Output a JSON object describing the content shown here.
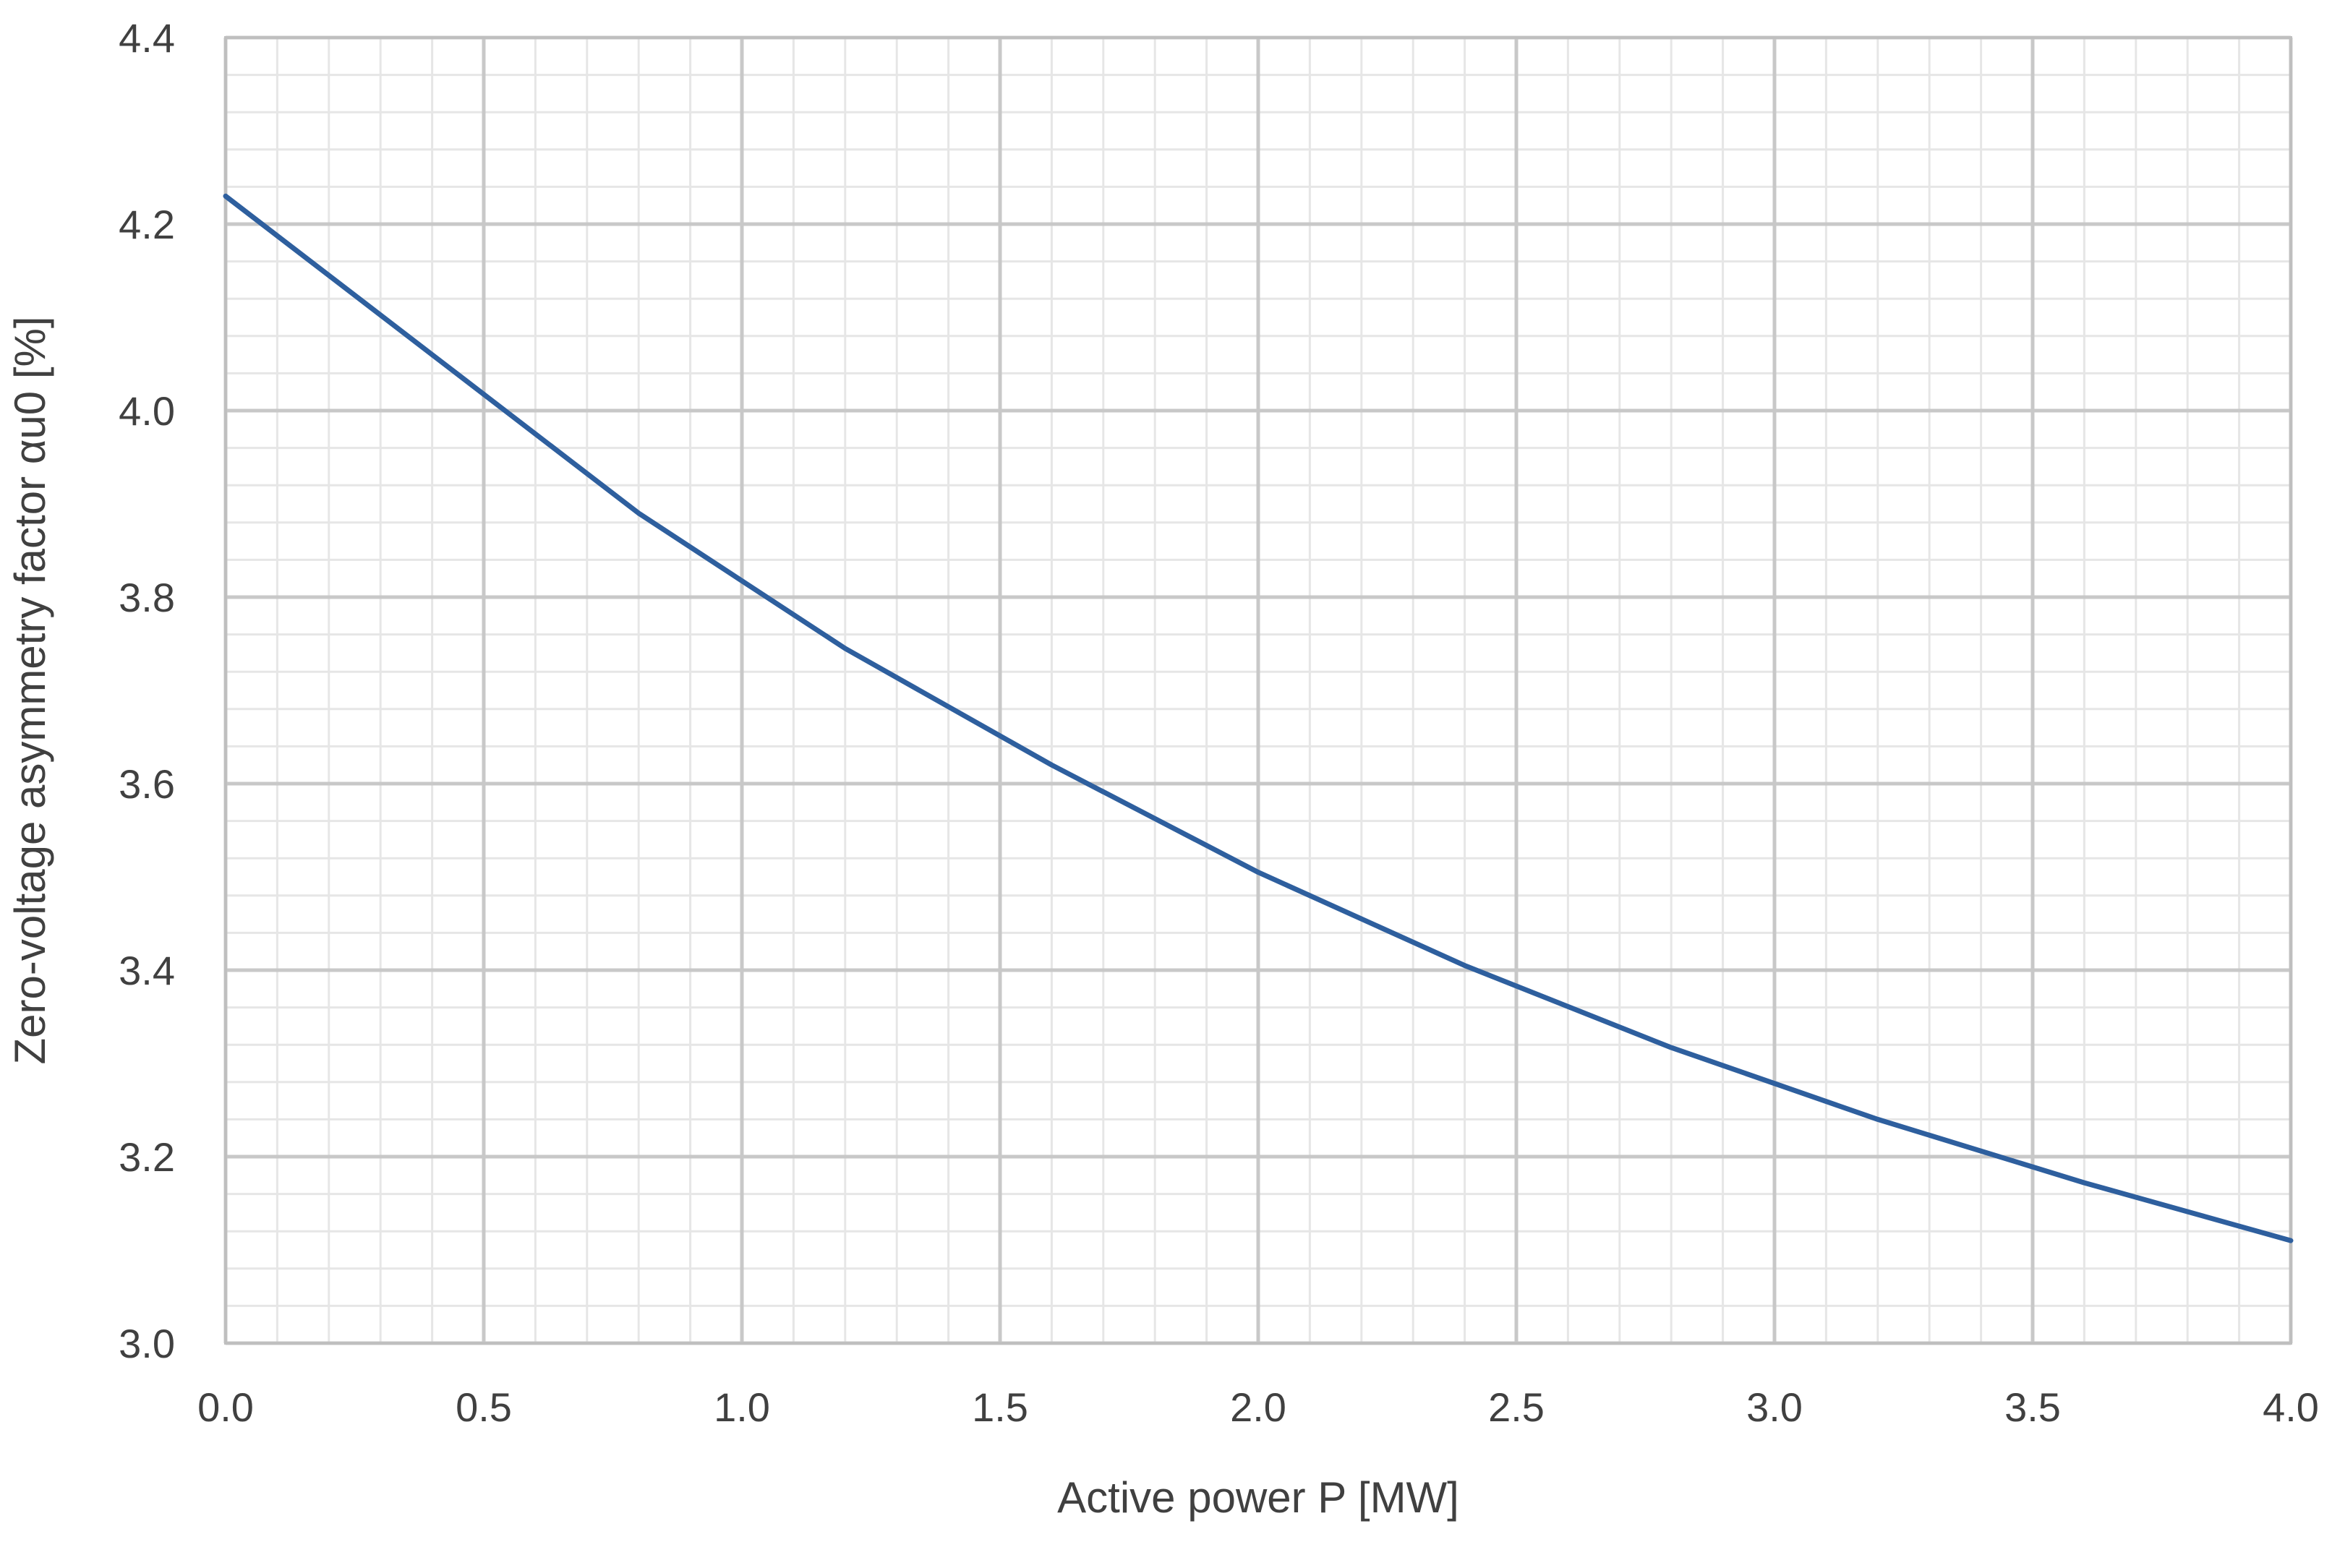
{
  "chart_data": {
    "type": "line",
    "title": "",
    "xlabel": "Active power P [MW]",
    "ylabel": "Zero-voltage asymmetry factor αu0 [%]",
    "xlim": [
      0.0,
      4.0
    ],
    "ylim": [
      3.0,
      4.4
    ],
    "x_ticks": [
      "0.0",
      "0.5",
      "1.0",
      "1.5",
      "2.0",
      "2.5",
      "3.0",
      "3.5",
      "4.0"
    ],
    "y_ticks": [
      "3.0",
      "3.2",
      "3.4",
      "3.6",
      "3.8",
      "4.0",
      "4.2",
      "4.4"
    ],
    "x_tick_values": [
      0.0,
      0.5,
      1.0,
      1.5,
      2.0,
      2.5,
      3.0,
      3.5,
      4.0
    ],
    "y_tick_values": [
      3.0,
      3.2,
      3.4,
      3.6,
      3.8,
      4.0,
      4.2,
      4.4
    ],
    "x_minor_step": 0.1,
    "y_minor_step": 0.04,
    "grid": true,
    "legend": "none",
    "series": [
      {
        "color": "#2e5f9e",
        "x": [
          0.0,
          0.4,
          0.8,
          1.2,
          1.6,
          2.0,
          2.4,
          2.8,
          3.2,
          3.6,
          4.0
        ],
        "y": [
          4.23,
          4.06,
          3.89,
          3.745,
          3.62,
          3.505,
          3.405,
          3.317,
          3.24,
          3.172,
          3.11
        ]
      }
    ]
  }
}
